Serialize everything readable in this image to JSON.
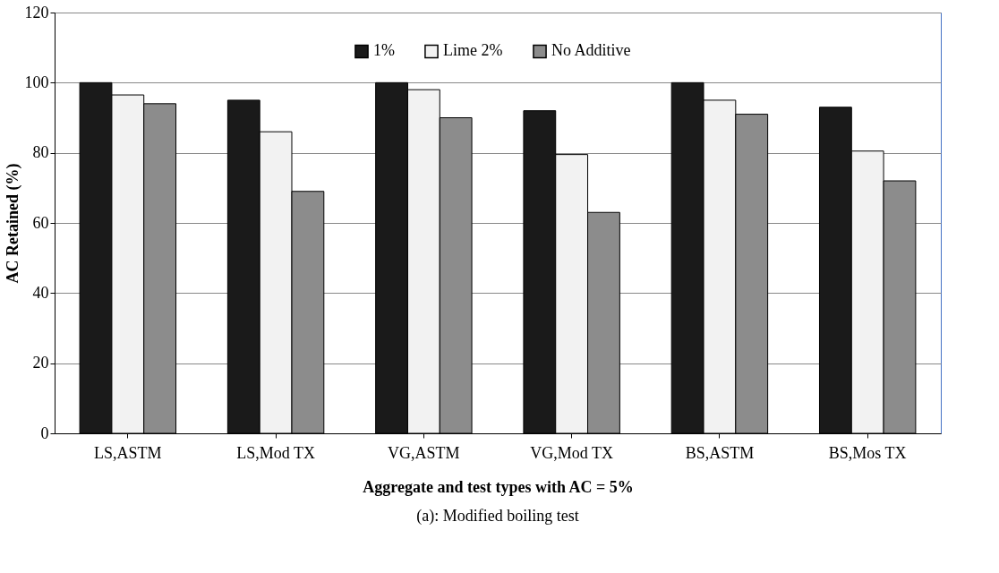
{
  "chart_data": {
    "type": "bar",
    "xlabel": "Aggregate and test types with AC = 5%",
    "ylabel": "AC Retained (%)",
    "categories": [
      "LS,ASTM",
      "LS,Mod TX",
      "VG,ASTM",
      "VG,Mod TX",
      "BS,ASTM",
      "BS,Mos TX"
    ],
    "series": [
      {
        "name": "1%",
        "color": "#1a1a1a",
        "values": [
          100,
          95,
          100,
          92,
          100,
          93
        ]
      },
      {
        "name": "Lime 2%",
        "color": "#f2f2f2",
        "values": [
          96.5,
          86,
          98,
          79.5,
          95,
          80.5
        ]
      },
      {
        "name": "No Additive",
        "color": "#8c8c8c",
        "values": [
          94,
          69,
          90,
          63,
          91,
          72
        ]
      }
    ],
    "ylim": [
      0,
      120
    ],
    "yticks": [
      0,
      20,
      40,
      60,
      80,
      100,
      120
    ],
    "grid": "y",
    "legend": "top",
    "annotations": [
      "(a): Modified boiling test"
    ]
  }
}
